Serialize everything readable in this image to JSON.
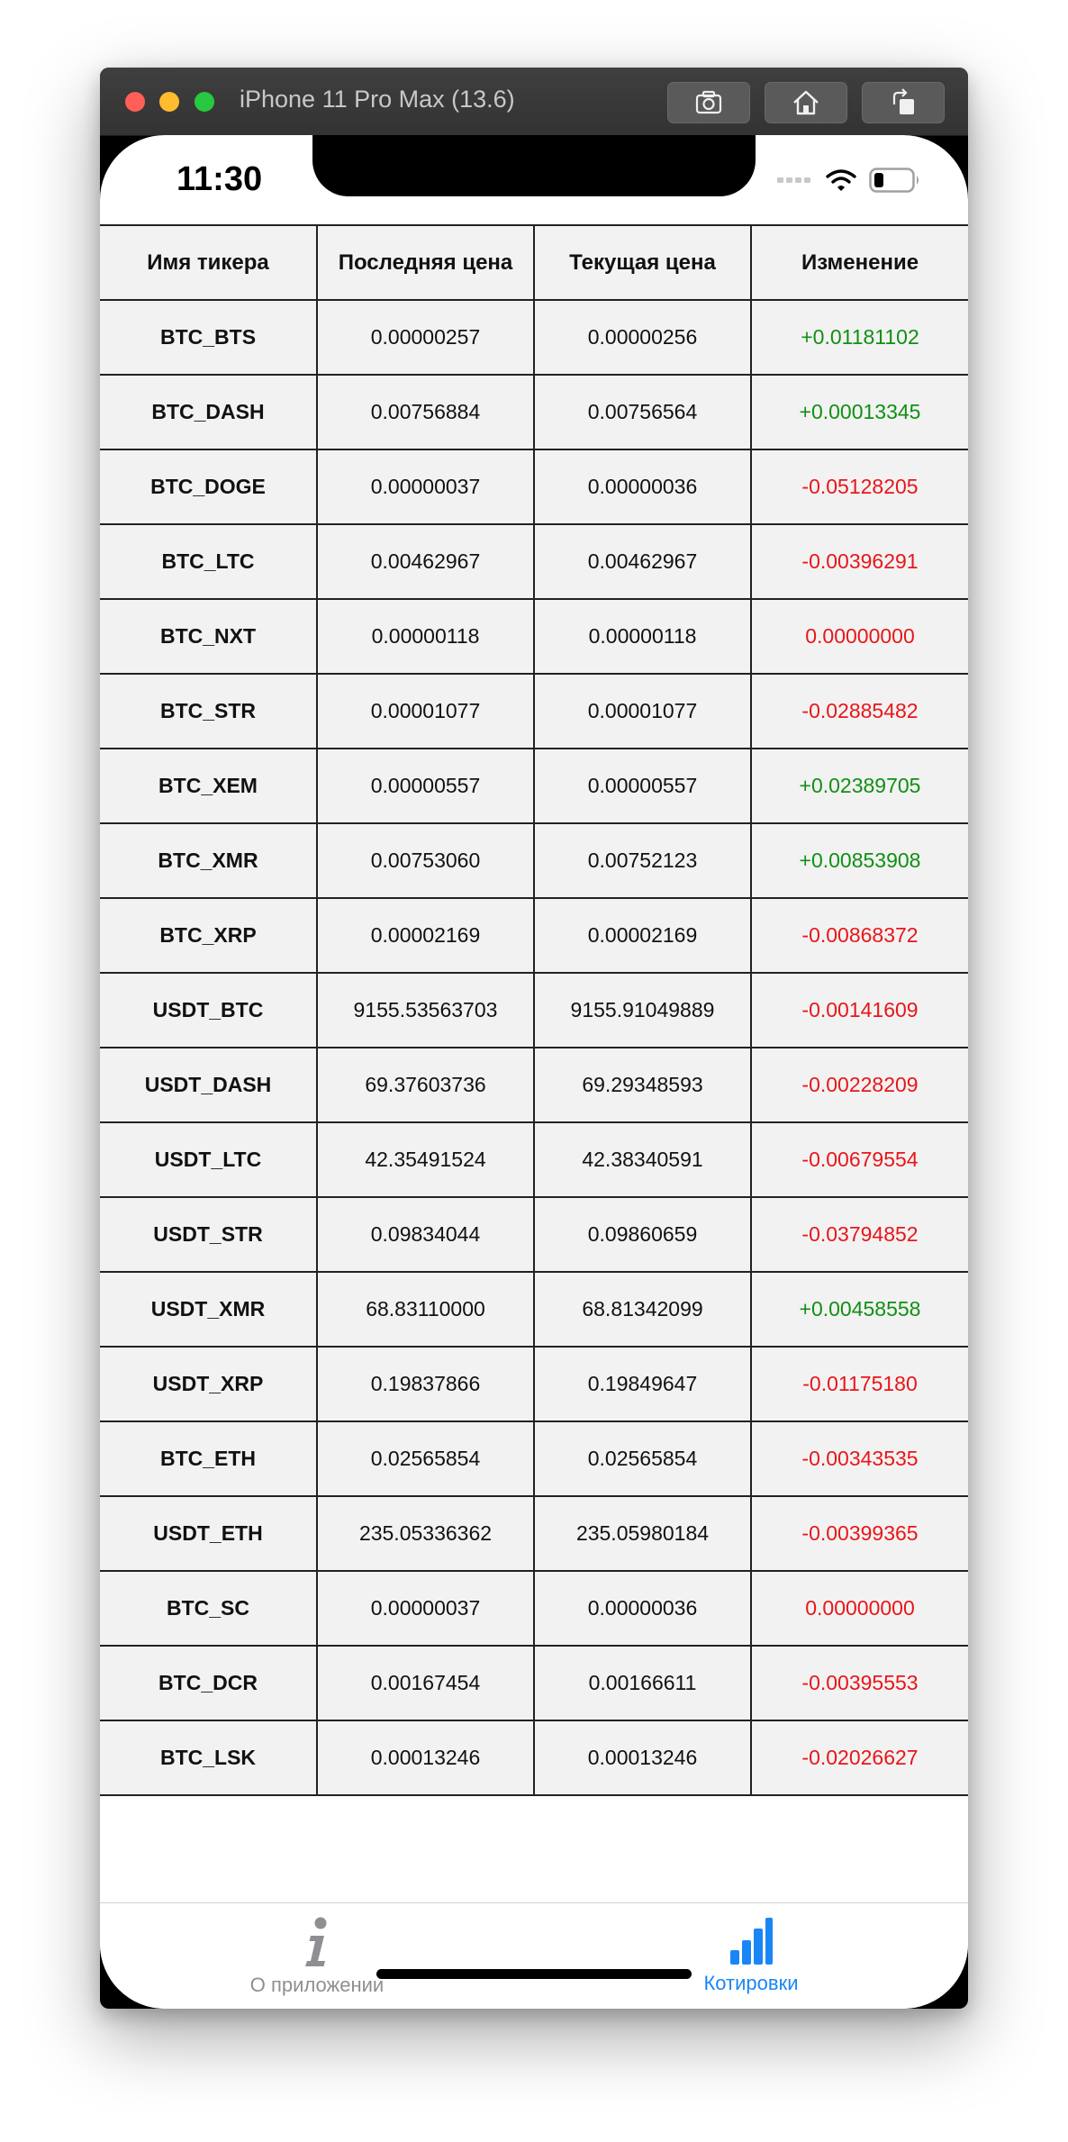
{
  "window": {
    "title": "iPhone 11 Pro Max (13.6)"
  },
  "status_bar": {
    "time": "11:30"
  },
  "table": {
    "headers": [
      "Имя тикера",
      "Последняя цена",
      "Текущая цена",
      "Изменение"
    ],
    "rows": [
      {
        "ticker": "BTC_BTS",
        "last": "0.00000257",
        "current": "0.00000256",
        "change": "+0.01181102",
        "trend": "pos"
      },
      {
        "ticker": "BTC_DASH",
        "last": "0.00756884",
        "current": "0.00756564",
        "change": "+0.00013345",
        "trend": "pos"
      },
      {
        "ticker": "BTC_DOGE",
        "last": "0.00000037",
        "current": "0.00000036",
        "change": "-0.05128205",
        "trend": "neg"
      },
      {
        "ticker": "BTC_LTC",
        "last": "0.00462967",
        "current": "0.00462967",
        "change": "-0.00396291",
        "trend": "neg"
      },
      {
        "ticker": "BTC_NXT",
        "last": "0.00000118",
        "current": "0.00000118",
        "change": "0.00000000",
        "trend": "neg"
      },
      {
        "ticker": "BTC_STR",
        "last": "0.00001077",
        "current": "0.00001077",
        "change": "-0.02885482",
        "trend": "neg"
      },
      {
        "ticker": "BTC_XEM",
        "last": "0.00000557",
        "current": "0.00000557",
        "change": "+0.02389705",
        "trend": "pos"
      },
      {
        "ticker": "BTC_XMR",
        "last": "0.00753060",
        "current": "0.00752123",
        "change": "+0.00853908",
        "trend": "pos"
      },
      {
        "ticker": "BTC_XRP",
        "last": "0.00002169",
        "current": "0.00002169",
        "change": "-0.00868372",
        "trend": "neg"
      },
      {
        "ticker": "USDT_BTC",
        "last": "9155.53563703",
        "current": "9155.91049889",
        "change": "-0.00141609",
        "trend": "neg"
      },
      {
        "ticker": "USDT_DASH",
        "last": "69.37603736",
        "current": "69.29348593",
        "change": "-0.00228209",
        "trend": "neg"
      },
      {
        "ticker": "USDT_LTC",
        "last": "42.35491524",
        "current": "42.38340591",
        "change": "-0.00679554",
        "trend": "neg"
      },
      {
        "ticker": "USDT_STR",
        "last": "0.09834044",
        "current": "0.09860659",
        "change": "-0.03794852",
        "trend": "neg"
      },
      {
        "ticker": "USDT_XMR",
        "last": "68.83110000",
        "current": "68.81342099",
        "change": "+0.00458558",
        "trend": "pos"
      },
      {
        "ticker": "USDT_XRP",
        "last": "0.19837866",
        "current": "0.19849647",
        "change": "-0.01175180",
        "trend": "neg"
      },
      {
        "ticker": "BTC_ETH",
        "last": "0.02565854",
        "current": "0.02565854",
        "change": "-0.00343535",
        "trend": "neg"
      },
      {
        "ticker": "USDT_ETH",
        "last": "235.05336362",
        "current": "235.05980184",
        "change": "-0.00399365",
        "trend": "neg"
      },
      {
        "ticker": "BTC_SC",
        "last": "0.00000037",
        "current": "0.00000036",
        "change": "0.00000000",
        "trend": "neg"
      },
      {
        "ticker": "BTC_DCR",
        "last": "0.00167454",
        "current": "0.00166611",
        "change": "-0.00395553",
        "trend": "neg"
      },
      {
        "ticker": "BTC_LSK",
        "last": "0.00013246",
        "current": "0.00013246",
        "change": "-0.02026627",
        "trend": "neg"
      }
    ]
  },
  "tabbar": {
    "about_label": "О приложении",
    "about_icon": "info-icon",
    "quotes_label": "Котировки",
    "quotes_icon": "bar-chart-icon"
  },
  "colors": {
    "positive": "#118f14",
    "negative": "#e8161a",
    "accent": "#1a86f5",
    "inactive": "#8e8e93"
  }
}
